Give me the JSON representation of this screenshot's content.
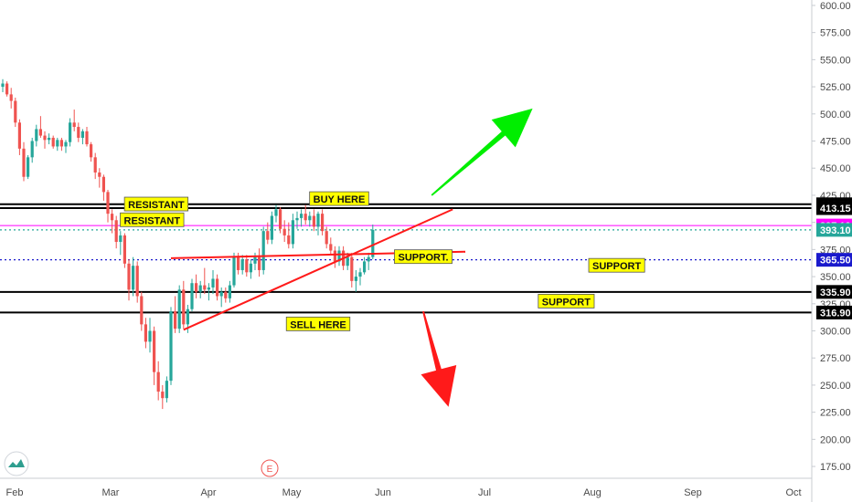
{
  "chart_data": {
    "type": "candlestick",
    "title": "",
    "xlabel": "",
    "ylabel": "",
    "ylim": [
      150,
      610
    ],
    "y_ticks": [
      175,
      200,
      225,
      250,
      275,
      300,
      325,
      350,
      375,
      400,
      425,
      450,
      475,
      500,
      525,
      550,
      575,
      600
    ],
    "x_ticks": [
      "Feb",
      "Mar",
      "Apr",
      "May",
      "Jun",
      "Jul",
      "Aug",
      "Sep",
      "Oct"
    ],
    "colors": {
      "up": "#26a69a",
      "down": "#ef5350",
      "arrow_up": "#00ee00",
      "arrow_down": "#ff1a1a",
      "note_bg": "#ffff00",
      "resistance_line": "#ff00ff"
    },
    "candles": [
      {
        "o": 525,
        "h": 532,
        "l": 520,
        "c": 528
      },
      {
        "o": 528,
        "h": 530,
        "l": 516,
        "c": 518
      },
      {
        "o": 518,
        "h": 524,
        "l": 505,
        "c": 512
      },
      {
        "o": 512,
        "h": 515,
        "l": 488,
        "c": 492
      },
      {
        "o": 492,
        "h": 495,
        "l": 462,
        "c": 468
      },
      {
        "o": 468,
        "h": 474,
        "l": 438,
        "c": 442
      },
      {
        "o": 442,
        "h": 462,
        "l": 440,
        "c": 460
      },
      {
        "o": 460,
        "h": 478,
        "l": 455,
        "c": 475
      },
      {
        "o": 475,
        "h": 490,
        "l": 470,
        "c": 486
      },
      {
        "o": 486,
        "h": 498,
        "l": 478,
        "c": 480
      },
      {
        "o": 480,
        "h": 484,
        "l": 468,
        "c": 476
      },
      {
        "o": 476,
        "h": 482,
        "l": 472,
        "c": 478
      },
      {
        "o": 478,
        "h": 480,
        "l": 468,
        "c": 470
      },
      {
        "o": 470,
        "h": 478,
        "l": 466,
        "c": 476
      },
      {
        "o": 476,
        "h": 478,
        "l": 466,
        "c": 470
      },
      {
        "o": 470,
        "h": 476,
        "l": 464,
        "c": 474
      },
      {
        "o": 474,
        "h": 496,
        "l": 470,
        "c": 492
      },
      {
        "o": 492,
        "h": 504,
        "l": 484,
        "c": 488
      },
      {
        "o": 488,
        "h": 492,
        "l": 474,
        "c": 478
      },
      {
        "o": 478,
        "h": 486,
        "l": 472,
        "c": 484
      },
      {
        "o": 484,
        "h": 488,
        "l": 470,
        "c": 472
      },
      {
        "o": 472,
        "h": 474,
        "l": 456,
        "c": 460
      },
      {
        "o": 460,
        "h": 464,
        "l": 440,
        "c": 446
      },
      {
        "o": 446,
        "h": 450,
        "l": 432,
        "c": 442
      },
      {
        "o": 442,
        "h": 444,
        "l": 420,
        "c": 428
      },
      {
        "o": 428,
        "h": 430,
        "l": 400,
        "c": 408
      },
      {
        "o": 408,
        "h": 412,
        "l": 390,
        "c": 402
      },
      {
        "o": 402,
        "h": 406,
        "l": 376,
        "c": 382
      },
      {
        "o": 382,
        "h": 392,
        "l": 370,
        "c": 388
      },
      {
        "o": 388,
        "h": 390,
        "l": 358,
        "c": 362
      },
      {
        "o": 362,
        "h": 366,
        "l": 328,
        "c": 338
      },
      {
        "o": 338,
        "h": 368,
        "l": 332,
        "c": 360
      },
      {
        "o": 360,
        "h": 364,
        "l": 326,
        "c": 332
      },
      {
        "o": 332,
        "h": 336,
        "l": 300,
        "c": 306
      },
      {
        "o": 306,
        "h": 312,
        "l": 284,
        "c": 290
      },
      {
        "o": 290,
        "h": 312,
        "l": 280,
        "c": 300
      },
      {
        "o": 300,
        "h": 304,
        "l": 250,
        "c": 262
      },
      {
        "o": 262,
        "h": 272,
        "l": 236,
        "c": 244
      },
      {
        "o": 244,
        "h": 250,
        "l": 228,
        "c": 238
      },
      {
        "o": 238,
        "h": 258,
        "l": 234,
        "c": 254
      },
      {
        "o": 254,
        "h": 322,
        "l": 250,
        "c": 318
      },
      {
        "o": 318,
        "h": 332,
        "l": 298,
        "c": 302
      },
      {
        "o": 302,
        "h": 342,
        "l": 298,
        "c": 338
      },
      {
        "o": 338,
        "h": 346,
        "l": 302,
        "c": 306
      },
      {
        "o": 306,
        "h": 324,
        "l": 298,
        "c": 320
      },
      {
        "o": 320,
        "h": 348,
        "l": 318,
        "c": 344
      },
      {
        "o": 344,
        "h": 352,
        "l": 330,
        "c": 336
      },
      {
        "o": 336,
        "h": 346,
        "l": 330,
        "c": 342
      },
      {
        "o": 342,
        "h": 358,
        "l": 334,
        "c": 338
      },
      {
        "o": 338,
        "h": 344,
        "l": 328,
        "c": 340
      },
      {
        "o": 340,
        "h": 356,
        "l": 334,
        "c": 348
      },
      {
        "o": 348,
        "h": 352,
        "l": 328,
        "c": 332
      },
      {
        "o": 332,
        "h": 340,
        "l": 322,
        "c": 336
      },
      {
        "o": 336,
        "h": 340,
        "l": 326,
        "c": 330
      },
      {
        "o": 330,
        "h": 346,
        "l": 326,
        "c": 342
      },
      {
        "o": 342,
        "h": 372,
        "l": 340,
        "c": 368
      },
      {
        "o": 368,
        "h": 372,
        "l": 352,
        "c": 356
      },
      {
        "o": 356,
        "h": 370,
        "l": 352,
        "c": 366
      },
      {
        "o": 366,
        "h": 370,
        "l": 350,
        "c": 354
      },
      {
        "o": 354,
        "h": 366,
        "l": 348,
        "c": 362
      },
      {
        "o": 362,
        "h": 372,
        "l": 356,
        "c": 368
      },
      {
        "o": 368,
        "h": 376,
        "l": 350,
        "c": 356
      },
      {
        "o": 356,
        "h": 396,
        "l": 352,
        "c": 392
      },
      {
        "o": 392,
        "h": 400,
        "l": 380,
        "c": 384
      },
      {
        "o": 384,
        "h": 410,
        "l": 380,
        "c": 406
      },
      {
        "o": 406,
        "h": 416,
        "l": 400,
        "c": 412
      },
      {
        "o": 412,
        "h": 414,
        "l": 390,
        "c": 394
      },
      {
        "o": 394,
        "h": 402,
        "l": 382,
        "c": 388
      },
      {
        "o": 388,
        "h": 400,
        "l": 376,
        "c": 380
      },
      {
        "o": 380,
        "h": 408,
        "l": 376,
        "c": 402
      },
      {
        "o": 402,
        "h": 410,
        "l": 394,
        "c": 404
      },
      {
        "o": 404,
        "h": 412,
        "l": 396,
        "c": 408
      },
      {
        "o": 408,
        "h": 416,
        "l": 398,
        "c": 402
      },
      {
        "o": 402,
        "h": 410,
        "l": 396,
        "c": 406
      },
      {
        "o": 406,
        "h": 412,
        "l": 392,
        "c": 396
      },
      {
        "o": 396,
        "h": 410,
        "l": 388,
        "c": 408
      },
      {
        "o": 408,
        "h": 412,
        "l": 388,
        "c": 392
      },
      {
        "o": 392,
        "h": 396,
        "l": 376,
        "c": 380
      },
      {
        "o": 380,
        "h": 386,
        "l": 370,
        "c": 374
      },
      {
        "o": 374,
        "h": 378,
        "l": 358,
        "c": 364
      },
      {
        "o": 364,
        "h": 378,
        "l": 360,
        "c": 374
      },
      {
        "o": 374,
        "h": 378,
        "l": 356,
        "c": 360
      },
      {
        "o": 360,
        "h": 372,
        "l": 356,
        "c": 368
      },
      {
        "o": 368,
        "h": 372,
        "l": 340,
        "c": 346
      },
      {
        "o": 346,
        "h": 356,
        "l": 336,
        "c": 350
      },
      {
        "o": 350,
        "h": 358,
        "l": 342,
        "c": 354
      },
      {
        "o": 354,
        "h": 368,
        "l": 352,
        "c": 364
      },
      {
        "o": 364,
        "h": 372,
        "l": 356,
        "c": 368
      },
      {
        "o": 368,
        "h": 398,
        "l": 366,
        "c": 393.1
      }
    ],
    "price_levels": [
      {
        "label": "416.70",
        "value": 416.7,
        "color": "#000000",
        "style": "solid"
      },
      {
        "label": "413.15",
        "value": 413.15,
        "color": "#000000",
        "style": "solid"
      },
      {
        "label": "397.10",
        "value": 397.1,
        "color": "#ff00ff",
        "style": "solid"
      },
      {
        "label": "393.10",
        "value": 393.1,
        "color": "#26a69a",
        "style": "dotted"
      },
      {
        "label": "365.50",
        "value": 365.5,
        "color": "#1a1acc",
        "style": "dotted"
      },
      {
        "label": "335.90",
        "value": 335.9,
        "color": "#000000",
        "style": "solid"
      },
      {
        "label": "316.90",
        "value": 316.9,
        "color": "#000000",
        "style": "solid"
      }
    ],
    "annotations": [
      {
        "text": "RESISTANT",
        "x": 36.5,
        "y": 416.5
      },
      {
        "text": "RESISTANT",
        "x": 35.5,
        "y": 402
      },
      {
        "text": "BUY HERE",
        "x": 80,
        "y": 421.5
      },
      {
        "text": "SUPPORT.",
        "x": 100,
        "y": 368
      },
      {
        "text": "SUPPORT",
        "x": 146,
        "y": 360
      },
      {
        "text": "SUPPORT",
        "x": 134,
        "y": 327
      },
      {
        "text": "SELL HERE",
        "x": 75,
        "y": 306
      }
    ],
    "trendlines": [
      {
        "from": {
          "x": 43,
          "y": 301
        },
        "to": {
          "x": 107,
          "y": 412
        }
      },
      {
        "from": {
          "x": 40,
          "y": 367
        },
        "to": {
          "x": 110,
          "y": 373
        }
      }
    ],
    "arrows": [
      {
        "direction": "up",
        "from": {
          "x": 102,
          "y": 425
        },
        "to": {
          "x": 126,
          "y": 505
        }
      },
      {
        "direction": "down",
        "from": {
          "x": 100,
          "y": 318
        },
        "to": {
          "x": 106,
          "y": 230
        }
      }
    ],
    "grid": false,
    "legend": "none",
    "logo_icon": "tradingview-logo-icon",
    "event_marker": "E"
  }
}
